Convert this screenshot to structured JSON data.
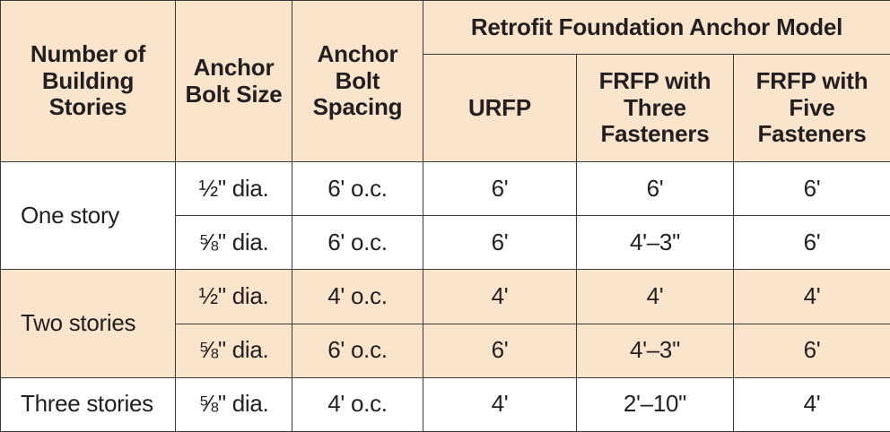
{
  "table": {
    "headers": {
      "stories": "Number of Building Stories",
      "bolt_size": "Anchor Bolt Size",
      "bolt_spacing": "Anchor Bolt Spacing",
      "group": "Retrofit Foundation Anchor Model",
      "urfp": "URFP",
      "frfp3": "FRFP with Three Fasteners",
      "frfp5": "FRFP with Five Fasteners"
    },
    "rows": [
      {
        "stories": "One story",
        "bolt_size": "½\" dia.",
        "bolt_spacing": "6' o.c.",
        "urfp": "6'",
        "frfp3": "6'",
        "frfp5": "6'"
      },
      {
        "bolt_size": "⅝\" dia.",
        "bolt_spacing": "6' o.c.",
        "urfp": "6'",
        "frfp3": "4'–3\"",
        "frfp5": "6'"
      },
      {
        "stories": "Two stories",
        "bolt_size": "½\" dia.",
        "bolt_spacing": "4' o.c.",
        "urfp": "4'",
        "frfp3": "4'",
        "frfp5": "4'"
      },
      {
        "bolt_size": "⅝\" dia.",
        "bolt_spacing": "6' o.c.",
        "urfp": "6'",
        "frfp3": "4'–3\"",
        "frfp5": "6'"
      },
      {
        "stories": "Three stories",
        "bolt_size": "⅝\" dia.",
        "bolt_spacing": "4' o.c.",
        "urfp": "4'",
        "frfp3": "2'–10\"",
        "frfp5": "4'"
      }
    ]
  },
  "colors": {
    "header_fill": "#fbe4cc",
    "border": "#3a3a3a",
    "text": "#231f20"
  }
}
